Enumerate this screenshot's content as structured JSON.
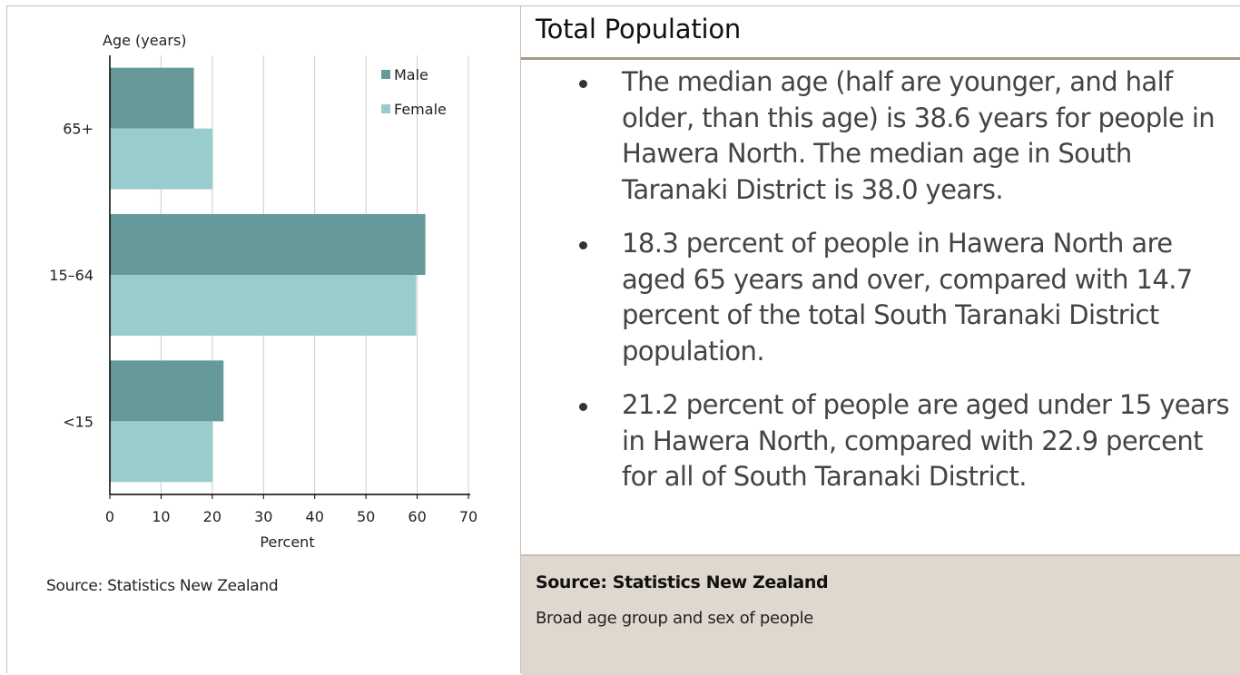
{
  "chart_data": {
    "type": "bar",
    "orientation": "horizontal",
    "categories": [
      "65+",
      "15–64",
      "<15"
    ],
    "series": [
      {
        "name": "Male",
        "values": [
          16.4,
          61.6,
          22.2
        ],
        "color": "#669999"
      },
      {
        "name": "Female",
        "values": [
          20.1,
          59.8,
          20.1
        ],
        "color": "#99cccc"
      }
    ],
    "xlabel": "Percent",
    "ylabel": "Age (years)",
    "xlim": [
      0,
      70
    ],
    "xticks": [
      0,
      10,
      20,
      30,
      40,
      50,
      60,
      70
    ],
    "grid": true,
    "legend_position": "top-right"
  },
  "left": {
    "source": "Source: Statistics New Zealand"
  },
  "right": {
    "title": "Total Population",
    "bullets": [
      "The median age (half are younger, and half older, than this age) is 38.6 years for people in Hawera North. The median age in South Taranaki District is 38.0 years.",
      "18.3 percent of people in Hawera North are aged 65 years and over, compared with 14.7 percent of the total South Taranaki District population.",
      "21.2 percent of people are aged under 15 years in Hawera North, compared with 22.9 percent for all of South Taranaki District."
    ],
    "footer_source": "Source: Statistics New Zealand",
    "footer_caption": "Broad age group and sex of people"
  }
}
